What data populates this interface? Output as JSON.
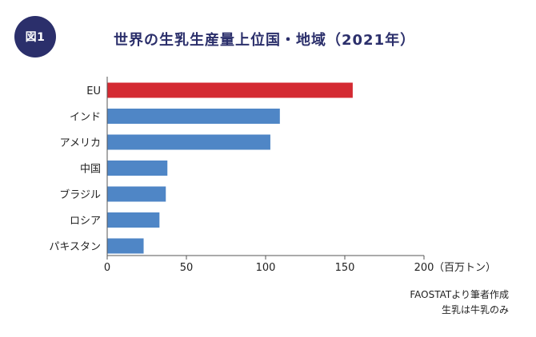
{
  "figure_label": "図1",
  "notes": [
    "FAOSTATより筆者作成",
    "生乳は牛乳のみ"
  ],
  "chart_data": {
    "type": "bar",
    "orientation": "horizontal",
    "title": "世界の生乳生産量上位国・地域（2021年）",
    "categories": [
      "EU",
      "インド",
      "アメリカ",
      "中国",
      "ブラジル",
      "ロシア",
      "パキスタン"
    ],
    "values": [
      155,
      109,
      103,
      38,
      37,
      33,
      23
    ],
    "highlight_color": "#d42a32",
    "bar_color": "#4f86c6",
    "highlight_index": 0,
    "xlim": [
      0,
      200
    ],
    "xticks": [
      0,
      50,
      100,
      150,
      200
    ],
    "xunit": "（百万トン）",
    "grid": false
  }
}
